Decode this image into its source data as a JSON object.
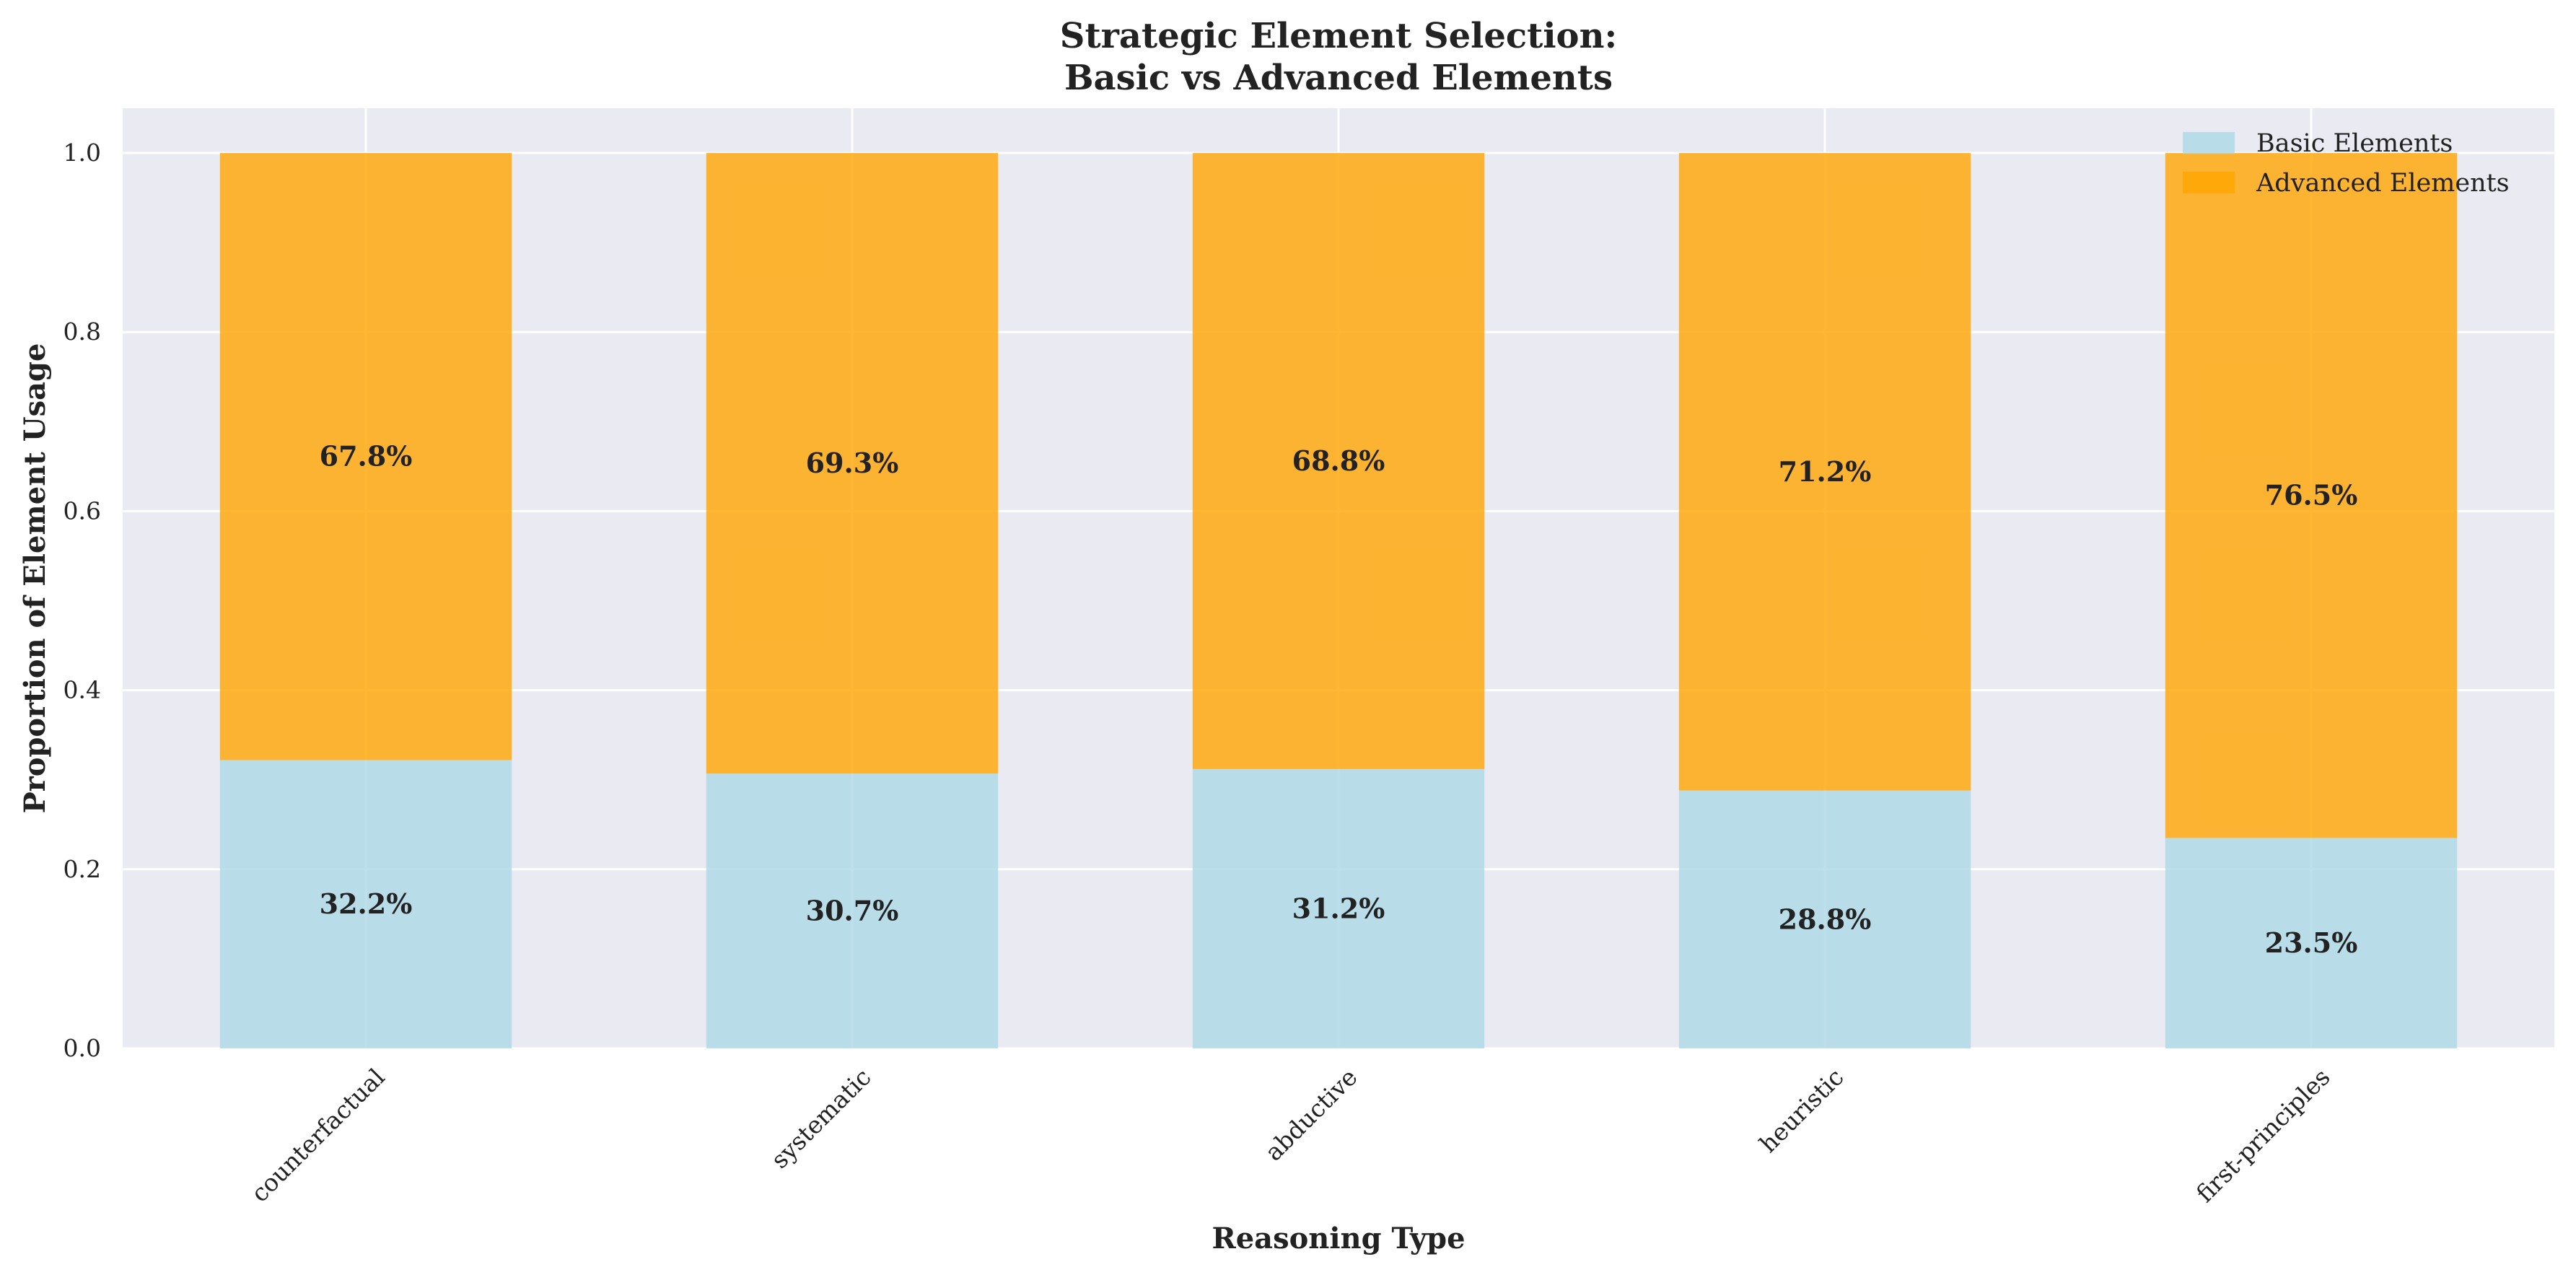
{
  "chart_data": {
    "type": "bar",
    "stacked": true,
    "title": [
      "Strategic Element Selection:",
      "Basic vs Advanced Elements"
    ],
    "xlabel": "Reasoning Type",
    "ylabel": "Proportion of Element Usage",
    "categories": [
      "counterfactual",
      "systematic",
      "abductive",
      "heuristic",
      "first-principles"
    ],
    "series": [
      {
        "name": "Basic Elements",
        "values": [
          0.322,
          0.307,
          0.312,
          0.288,
          0.235
        ],
        "labels": [
          "32.2%",
          "30.7%",
          "31.2%",
          "28.8%",
          "23.5%"
        ],
        "color": "#add8e6"
      },
      {
        "name": "Advanced Elements",
        "values": [
          0.678,
          0.693,
          0.688,
          0.712,
          0.765
        ],
        "labels": [
          "67.8%",
          "69.3%",
          "68.8%",
          "71.2%",
          "76.5%"
        ],
        "color": "#ffa500"
      }
    ],
    "ylim": [
      0,
      1.05
    ],
    "yticks": [
      "0.0",
      "0.2",
      "0.4",
      "0.6",
      "0.8",
      "1.0"
    ],
    "grid": true,
    "legend_position": "top-right",
    "background_color": "#eaeaf2"
  }
}
